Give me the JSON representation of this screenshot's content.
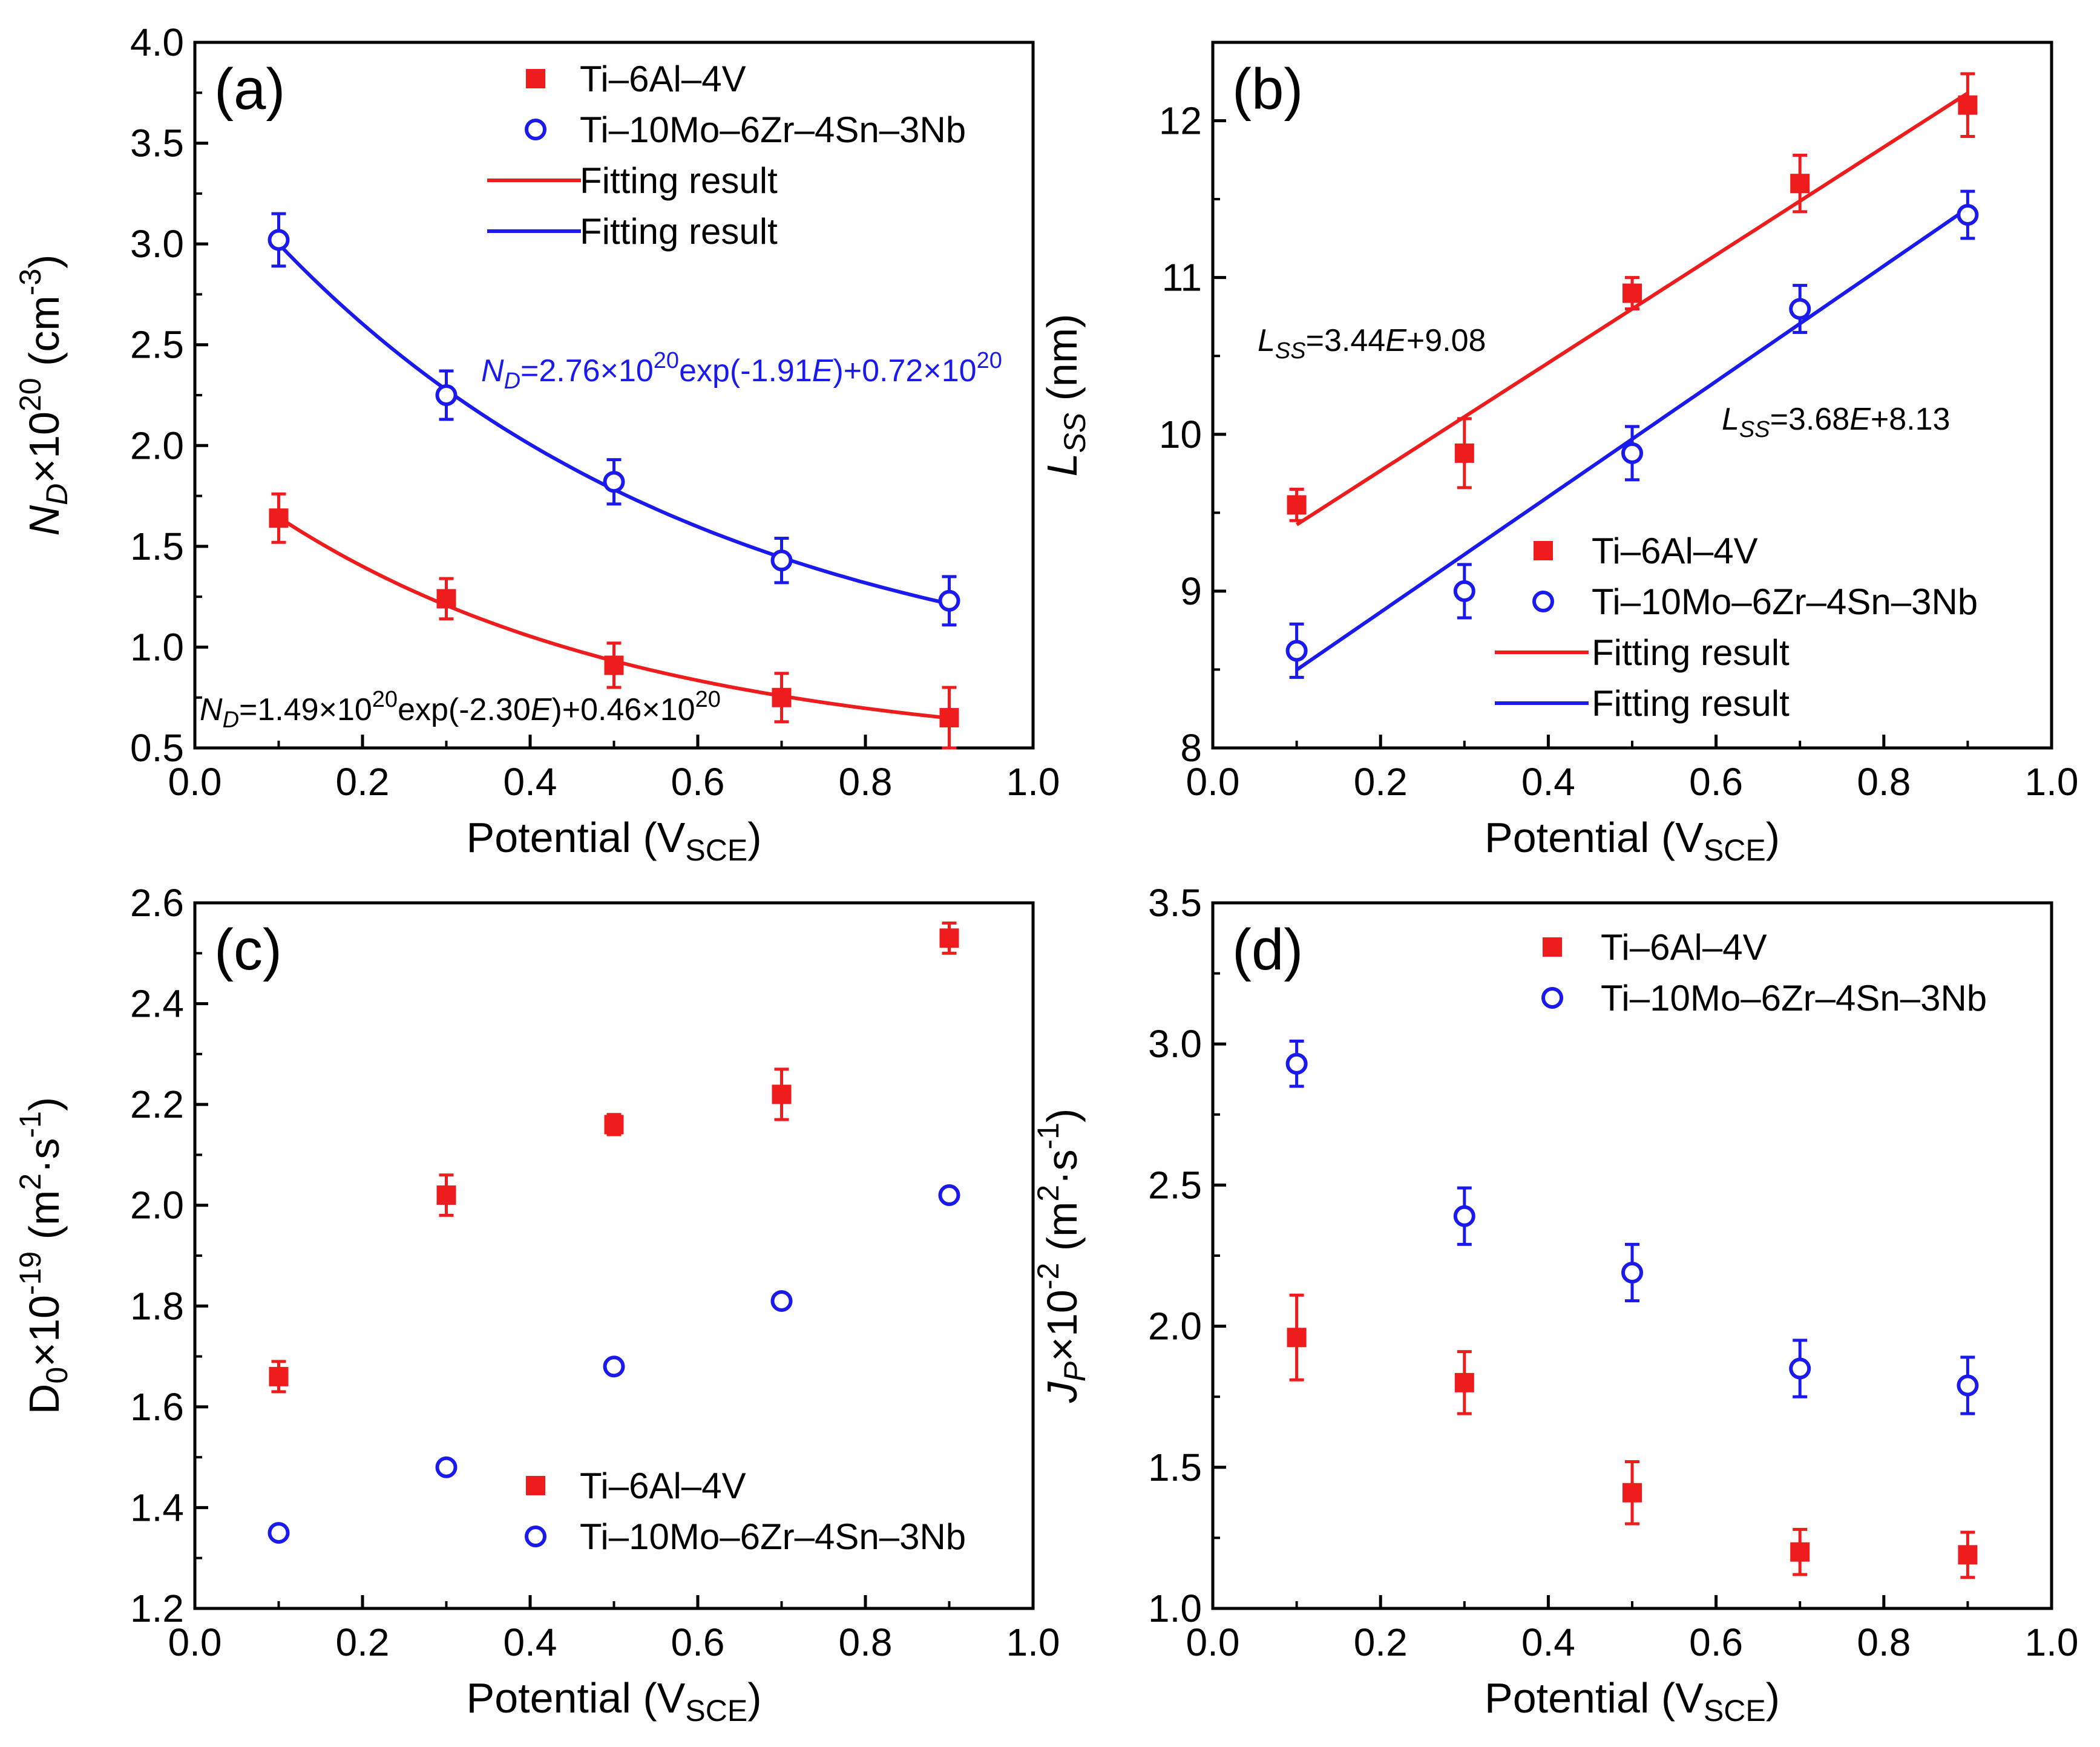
{
  "colors": {
    "red": "#ee1c1c",
    "blue": "#1a1aee",
    "axis": "#000000"
  },
  "chart_data": [
    {
      "panel": "(a)",
      "type": "scatter",
      "xlabel": "Potential (V",
      "xlabel_sub": "SCE",
      "xlabel_end": ")",
      "ylabel_parts": [
        "N",
        "D",
        "×10",
        "20",
        " (cm",
        "-3",
        ")"
      ],
      "xlim": [
        0.0,
        1.0
      ],
      "ylim": [
        0.5,
        4.0
      ],
      "xticks": [
        "0.0",
        "0.2",
        "0.4",
        "0.6",
        "0.8",
        "1.0"
      ],
      "yticks": [
        "0.5",
        "1.0",
        "1.5",
        "2.0",
        "2.5",
        "3.0",
        "3.5",
        "4.0"
      ],
      "legend_position": "top-right",
      "series": [
        {
          "name": "Ti–6Al–4V",
          "marker": "square",
          "color": "#ee1c1c",
          "x": [
            0.1,
            0.3,
            0.5,
            0.7,
            0.9
          ],
          "y": [
            1.64,
            1.24,
            0.91,
            0.75,
            0.65
          ],
          "err": [
            0.12,
            0.1,
            0.11,
            0.12,
            0.15
          ]
        },
        {
          "name": "Ti–10Mo–6Zr–4Sn–3Nb",
          "marker": "circle",
          "color": "#1a1aee",
          "x": [
            0.1,
            0.3,
            0.5,
            0.7,
            0.9
          ],
          "y": [
            3.02,
            2.25,
            1.82,
            1.43,
            1.23
          ],
          "err": [
            0.13,
            0.12,
            0.11,
            0.11,
            0.12
          ]
        }
      ],
      "fits": [
        {
          "name": "Fitting result",
          "color": "#ee1c1c",
          "model": "exp",
          "A": 1.49,
          "k": -2.3,
          "c": 0.46,
          "equation": [
            "N",
            "D",
            "=1.49×10",
            "20",
            "exp(-2.30",
            "E",
            ")+0.46×10",
            "20"
          ]
        },
        {
          "name": "Fitting result",
          "color": "#1a1aee",
          "model": "exp",
          "A": 2.76,
          "k": -1.91,
          "c": 0.72,
          "equation": [
            "N",
            "D",
            "=2.76×10",
            "20",
            "exp(-1.91",
            "E",
            ")+0.72×10",
            "20"
          ]
        }
      ]
    },
    {
      "panel": "(b)",
      "type": "scatter",
      "xlabel": "Potential (V",
      "xlabel_sub": "SCE",
      "xlabel_end": ")",
      "ylabel_parts": [
        "L",
        "SS",
        " (nm)"
      ],
      "xlim": [
        0.0,
        1.0
      ],
      "ylim": [
        8.0,
        12.5
      ],
      "xticks": [
        "0.0",
        "0.2",
        "0.4",
        "0.6",
        "0.8",
        "1.0"
      ],
      "yticks": [
        "8",
        "9",
        "10",
        "11",
        "12"
      ],
      "legend_position": "bottom-right",
      "series": [
        {
          "name": "Ti–6Al–4V",
          "marker": "square",
          "color": "#ee1c1c",
          "x": [
            0.1,
            0.3,
            0.5,
            0.7,
            0.9
          ],
          "y": [
            9.55,
            9.88,
            10.9,
            11.6,
            12.1
          ],
          "err": [
            0.1,
            0.22,
            0.1,
            0.18,
            0.2
          ]
        },
        {
          "name": "Ti–10Mo–6Zr–4Sn–3Nb",
          "marker": "circle",
          "color": "#1a1aee",
          "x": [
            0.1,
            0.3,
            0.5,
            0.7,
            0.9
          ],
          "y": [
            8.62,
            9.0,
            9.88,
            10.8,
            11.4
          ],
          "err": [
            0.17,
            0.17,
            0.17,
            0.15,
            0.15
          ]
        }
      ],
      "fits": [
        {
          "name": "Fitting result",
          "color": "#ee1c1c",
          "model": "linear",
          "slope": 3.44,
          "intercept": 9.08,
          "equation": [
            "L",
            "SS",
            "=3.44",
            "E",
            "+9.08"
          ]
        },
        {
          "name": "Fitting result",
          "color": "#1a1aee",
          "model": "linear",
          "slope": 3.68,
          "intercept": 8.13,
          "equation": [
            "L",
            "SS",
            "=3.68",
            "E",
            "+8.13"
          ]
        }
      ]
    },
    {
      "panel": "(c)",
      "type": "scatter",
      "xlabel": "Potential (V",
      "xlabel_sub": "SCE",
      "xlabel_end": ")",
      "ylabel_parts": [
        "D",
        "0",
        "×10",
        "-19",
        " (m",
        "2",
        "·s",
        "-1",
        ")"
      ],
      "xlim": [
        0.0,
        1.0
      ],
      "ylim": [
        1.2,
        2.6
      ],
      "xticks": [
        "0.0",
        "0.2",
        "0.4",
        "0.6",
        "0.8",
        "1.0"
      ],
      "yticks": [
        "1.2",
        "1.4",
        "1.6",
        "1.8",
        "2.0",
        "2.2",
        "2.4",
        "2.6"
      ],
      "legend_position": "bottom-right",
      "series": [
        {
          "name": "Ti–6Al–4V",
          "marker": "square",
          "color": "#ee1c1c",
          "x": [
            0.1,
            0.3,
            0.5,
            0.7,
            0.9
          ],
          "y": [
            1.66,
            2.02,
            2.16,
            2.22,
            2.53
          ],
          "err": [
            0.03,
            0.04,
            0.02,
            0.05,
            0.03
          ]
        },
        {
          "name": "Ti–10Mo–6Zr–4Sn–3Nb",
          "marker": "circle",
          "color": "#1a1aee",
          "x": [
            0.1,
            0.3,
            0.5,
            0.7,
            0.9
          ],
          "y": [
            1.35,
            1.48,
            1.68,
            1.81,
            2.02
          ],
          "err": [
            0.01,
            0.01,
            0.01,
            0.01,
            0.01
          ]
        }
      ],
      "fits": []
    },
    {
      "panel": "(d)",
      "type": "scatter",
      "xlabel": "Potential (V",
      "xlabel_sub": "SCE",
      "xlabel_end": ")",
      "ylabel_parts": [
        "J",
        "P",
        "×10",
        "-2",
        " (m",
        "2",
        "·s",
        "-1",
        ")"
      ],
      "xlim": [
        0.0,
        1.0
      ],
      "ylim": [
        1.0,
        3.5
      ],
      "xticks": [
        "0.0",
        "0.2",
        "0.4",
        "0.6",
        "0.8",
        "1.0"
      ],
      "yticks": [
        "1.0",
        "1.5",
        "2.0",
        "2.5",
        "3.0",
        "3.5"
      ],
      "legend_position": "top-right",
      "series": [
        {
          "name": "Ti–6Al–4V",
          "marker": "square",
          "color": "#ee1c1c",
          "x": [
            0.1,
            0.3,
            0.5,
            0.7,
            0.9
          ],
          "y": [
            1.96,
            1.8,
            1.41,
            1.2,
            1.19
          ],
          "err": [
            0.15,
            0.11,
            0.11,
            0.08,
            0.08
          ]
        },
        {
          "name": "Ti–10Mo–6Zr–4Sn–3Nb",
          "marker": "circle",
          "color": "#1a1aee",
          "x": [
            0.1,
            0.3,
            0.5,
            0.7,
            0.9
          ],
          "y": [
            2.93,
            2.39,
            2.19,
            1.85,
            1.79
          ],
          "err": [
            0.08,
            0.1,
            0.1,
            0.1,
            0.1
          ]
        }
      ],
      "fits": []
    }
  ]
}
